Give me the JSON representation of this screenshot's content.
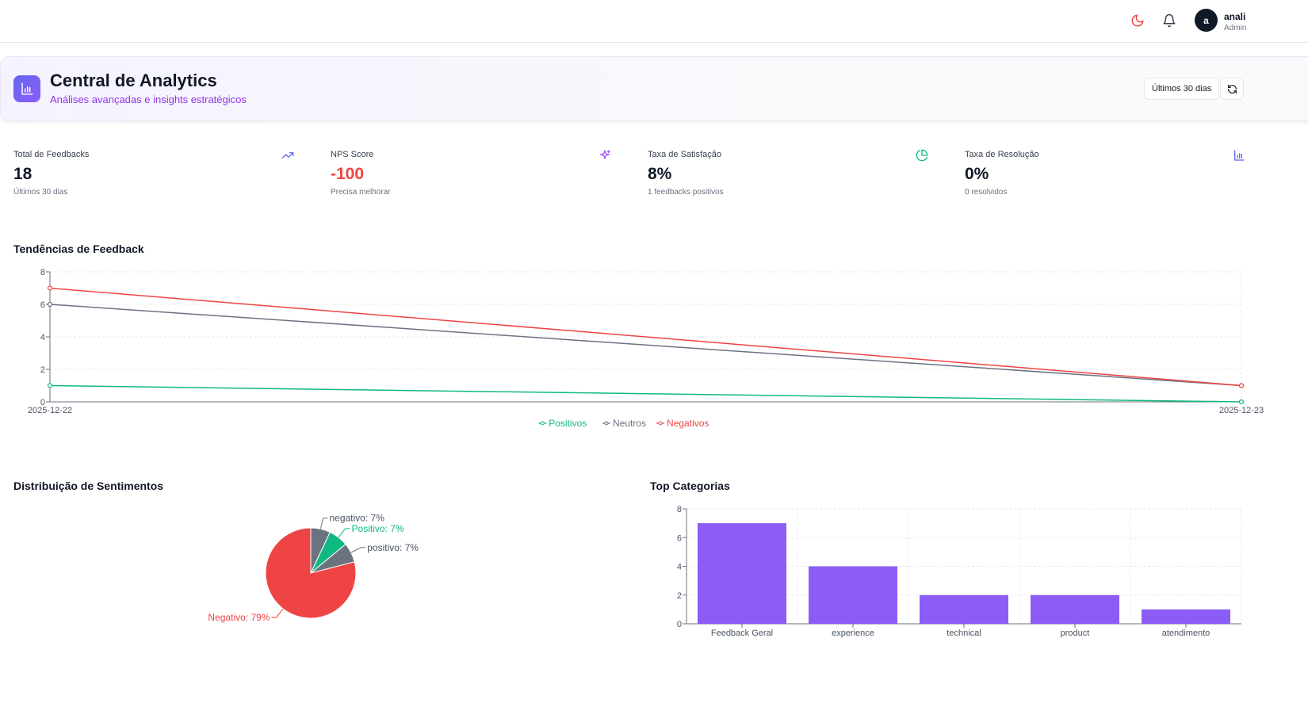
{
  "topbar": {
    "icons": [
      "moon-icon",
      "bell-icon"
    ],
    "user": {
      "avatar_text": "a",
      "name": "anali",
      "role": "Admin"
    }
  },
  "header": {
    "title": "Central de Analytics",
    "subtitle": "Análises avançadas e insights estratégicos",
    "period_label": "Últimos 30 dias",
    "accent": "#8b5cf6"
  },
  "stats": [
    {
      "label": "Total de Feedbacks",
      "value": "18",
      "sub": "Últimos 30 dias",
      "icon": "trending-up-icon",
      "icon_color": "#6366f1"
    },
    {
      "label": "NPS Score",
      "value": "-100",
      "sub": "Precisa melhorar",
      "icon": "sparkles-icon",
      "icon_color": "#a855f7",
      "value_color": "#ef4444"
    },
    {
      "label": "Taxa de Satisfação",
      "value": "8%",
      "sub": "1 feedbacks positivos",
      "icon": "pie-chart-icon",
      "icon_color": "#10b981"
    },
    {
      "label": "Taxa de Resolução",
      "value": "0%",
      "sub": "0 resolvidos",
      "icon": "bar-chart-icon",
      "icon_color": "#6366f1"
    }
  ],
  "sections": {
    "trends_title": "Tendências de Feedback",
    "sentiment_title": "Distribuição de Sentimentos",
    "categories_title": "Top Categorias"
  },
  "chart_data": [
    {
      "type": "line",
      "x": [
        "2025-12-22",
        "2025-12-23"
      ],
      "series": [
        {
          "name": "Positivos",
          "values": [
            1,
            0
          ],
          "color": "#10b981"
        },
        {
          "name": "Neutros",
          "values": [
            6,
            1
          ],
          "color": "#6b7280"
        },
        {
          "name": "Negativos",
          "values": [
            7,
            1
          ],
          "color": "#ef4444"
        }
      ],
      "yticks": [
        0,
        2,
        4,
        6,
        8
      ],
      "ylim": [
        0,
        8
      ],
      "grid": true,
      "legend": "bottom-center"
    },
    {
      "type": "pie",
      "slices": [
        {
          "label": "Negativo: 79%",
          "value": 79,
          "color": "#ef4444"
        },
        {
          "label": "positivo: 7%",
          "value": 7,
          "color": "#6b7280"
        },
        {
          "label": "Positivo: 7%",
          "value": 7,
          "color": "#10b981"
        },
        {
          "label": "negativo: 7%",
          "value": 7,
          "color": "#6b7280"
        }
      ]
    },
    {
      "type": "bar",
      "categories": [
        "Feedback Geral",
        "experience",
        "technical",
        "product",
        "atendimento"
      ],
      "values": [
        7,
        4,
        2,
        2,
        1
      ],
      "yticks": [
        0,
        2,
        4,
        6,
        8
      ],
      "ylim": [
        0,
        8
      ],
      "grid": true,
      "color": "#8b5cf6"
    }
  ]
}
